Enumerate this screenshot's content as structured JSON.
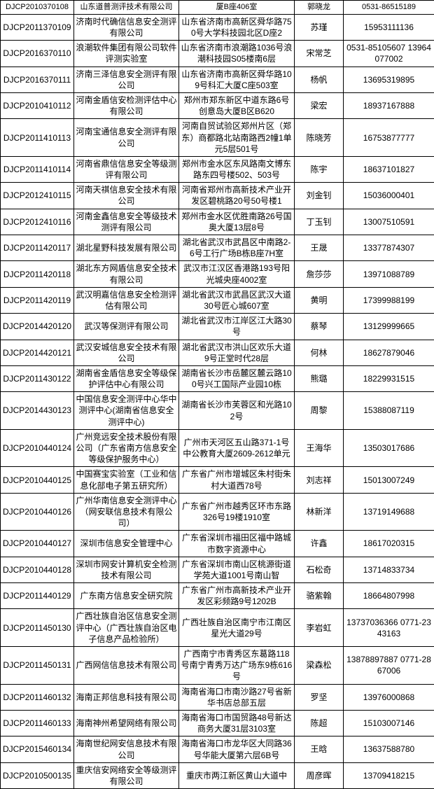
{
  "table": {
    "columns": [
      {
        "key": "code",
        "width": 105
      },
      {
        "key": "company",
        "width": 150
      },
      {
        "key": "address",
        "width": 165
      },
      {
        "key": "contact",
        "width": 70
      },
      {
        "key": "phone",
        "width": 130
      }
    ],
    "rows": [
      {
        "code": "DJCP2010370108",
        "company": "山东道普测评技术有限公司",
        "address": "厦B座406室",
        "contact": "郭晓龙",
        "phone": "0531-86515189"
      },
      {
        "code": "DJCP2011370109",
        "company": "济南时代确信信息安全测评有限公司",
        "address": "山东省济南市高新区舜华路750号大学科技园北区D座2",
        "contact": "苏瑾",
        "phone": "15953111136"
      },
      {
        "code": "DJCP2016370110",
        "company": "浪潮软件集团有限公司软件评测实验室",
        "address": "山东省济南市浪潮路1036号浪潮科技园S05楼南6层",
        "contact": "宋常芝",
        "phone": "0531-85105607 13964077002"
      },
      {
        "code": "DJCP2016370111",
        "company": "济南三泽信息安全测评有限公司",
        "address": "山东省济南市高新区舜华路109号科汇大厦C座503室",
        "contact": "杨帆",
        "phone": "13695319895"
      },
      {
        "code": "DJCP2010410112",
        "company": "河南金盾信安检测评估中心有限公司",
        "address": "郑州市郑东新区中道东路6号创意岛大厦B区B620",
        "contact": "梁宏",
        "phone": "18937167888"
      },
      {
        "code": "DJCP2011410113",
        "company": "河南宝通信息安全测评有限公司",
        "address": "河南自贸试验区郑州片区（郑东）商都路北站南路西2幢1单元5层501号",
        "contact": "陈晓芳",
        "phone": "16753877777"
      },
      {
        "code": "DJCP2011410114",
        "company": "河南省鼎信信息安全等级测评有限公司",
        "address": "郑州市金水区东风路南文博东路东四号楼502、503号",
        "contact": "陈宇",
        "phone": "18637101827"
      },
      {
        "code": "DJCP2012410115",
        "company": "河南天祺信息安全技术有限公司",
        "address": "河南省郑州市高新技术产业开发区碧桃路20号50号楼1",
        "contact": "刘金钊",
        "phone": "15036000401"
      },
      {
        "code": "DJCP2012410116",
        "company": "河南金鑫信息安全等级技术测评有限公司",
        "address": "郑州市金水区优胜南路26号国奥大厦13层8号",
        "contact": "丁玉钊",
        "phone": "13007510591"
      },
      {
        "code": "DJCP2011420117",
        "company": "湖北星野科技发展有限公司",
        "address": "湖北省武汉市武昌区中南路2-6号工行广场B栋B座7H室",
        "contact": "王晟",
        "phone": "13377874307"
      },
      {
        "code": "DJCP2011420118",
        "company": "湖北东方网盾信息安全技术有限公司",
        "address": "武汉市江汉区香港路193号阳光城央座4002室",
        "contact": "詹莎莎",
        "phone": "13971088789"
      },
      {
        "code": "DJCP2011420119",
        "company": "武汉明嘉信信息安全检测评估有限公司",
        "address": "湖北省武汉市武昌区武汉大道30号匠心城607室",
        "contact": "黄明",
        "phone": "17399988199"
      },
      {
        "code": "DJCP2014420120",
        "company": "武汉等保测评有限公司",
        "address": "湖北省武汉市江岸区江大路30号",
        "contact": "蔡琴",
        "phone": "13129999665"
      },
      {
        "code": "DJCP2014420121",
        "company": "武汉安城信息安全技术有限公司",
        "address": "湖北省武汉市洪山区欢乐大道9号正堂时代28层",
        "contact": "何林",
        "phone": "18627879046"
      },
      {
        "code": "DJCP2011430122",
        "company": "湖南省金盾信息安全等级保护评估中心有限公司",
        "address": "湖南省长沙市岳麓区麓云路100号兴工国际产业园10栋",
        "contact": "熊璐",
        "phone": "18229931515"
      },
      {
        "code": "DJCP2014430123",
        "company": "中国信息安全测评中心华中测评中心(湖南省信息安全测评中心)",
        "address": "湖南省长沙市芙蓉区和光路102号",
        "contact": "周黎",
        "phone": "15388087119"
      },
      {
        "code": "DJCP2010440124",
        "company": "广州竞远安全技术股份有限公司（广东省南方信息安全等级保护服务中心）",
        "address": "广州市天河区五山路371-1号中公教育大厦2609-2612单元",
        "contact": "王海华",
        "phone": "13503017686"
      },
      {
        "code": "DJCP2010440125",
        "company": "中国赛宝实验室（工业和信息化部电子第五研究所）",
        "address": "广东省广州市增城区朱村街朱村大道西78号",
        "contact": "刘志祥",
        "phone": "15013007249"
      },
      {
        "code": "DJCP2010440126",
        "company": "广州华南信息安全测评中心（网安联信息技术有限公司）",
        "address": "广东省广州市越秀区环市东路326号19楼1910室",
        "contact": "林新洋",
        "phone": "13719149688"
      },
      {
        "code": "DJCP2010440127",
        "company": "深圳市信息安全管理中心",
        "address": "广东省深圳市福田区福中路城市数字资源中心",
        "contact": "许鑫",
        "phone": "18617020315"
      },
      {
        "code": "DJCP2010440128",
        "company": "深圳市网安计算机安全检测技术有限公司",
        "address": "广东省深圳市南山区桃源街道学苑大道1001号南山智",
        "contact": "石松奇",
        "phone": "13714833734"
      },
      {
        "code": "DJCP2011440129",
        "company": "广东南方信息安全研究院",
        "address": "广东省广州市高新技术产业开发区彩频路9号1202B",
        "contact": "骆紫翰",
        "phone": "18664807998"
      },
      {
        "code": "DJCP2011450130",
        "company": "广西壮族自治区信息安全测评中心（广西壮族自治区电子信息产品检验所）",
        "address": "广西壮族自治区南宁市江南区星光大道29号",
        "contact": "李岩虹",
        "phone": "13737036366 0771-2343163"
      },
      {
        "code": "DJCP2011450131",
        "company": "广西网信信息技术有限公司",
        "address": "广西南宁市青秀区东葛路118号南宁青秀万达广场东9栋616号",
        "contact": "梁森松",
        "phone": "13878897887 0771-2867006"
      },
      {
        "code": "DJCP2011460132",
        "company": "海南正邦信息科技有限公司",
        "address": "海南省海口市南沙路27号省新华书店总部五层",
        "contact": "罗坚",
        "phone": "13976000868"
      },
      {
        "code": "DJCP2011460133",
        "company": "海南神州希望网络有限公司",
        "address": "海南省海口市国贸路48号新达商务大厦31层3103室",
        "contact": "陈超",
        "phone": "15103007146"
      },
      {
        "code": "DJCP2015460134",
        "company": "海南世纪网安信息技术有限公司",
        "address": "海南省海口市龙华区大同路36号华能大厦第六层6B号",
        "contact": "王晗",
        "phone": "13637588780"
      },
      {
        "code": "DJCP2010500135",
        "company": "重庆信安网络安全等级测评有限公司",
        "address": "重庆市两江新区黄山大道中",
        "contact": "周彦晖",
        "phone": "13709418215"
      }
    ],
    "border_color": "#000000",
    "background_color": "#ffffff",
    "font_size": 12,
    "text_color": "#000000"
  }
}
